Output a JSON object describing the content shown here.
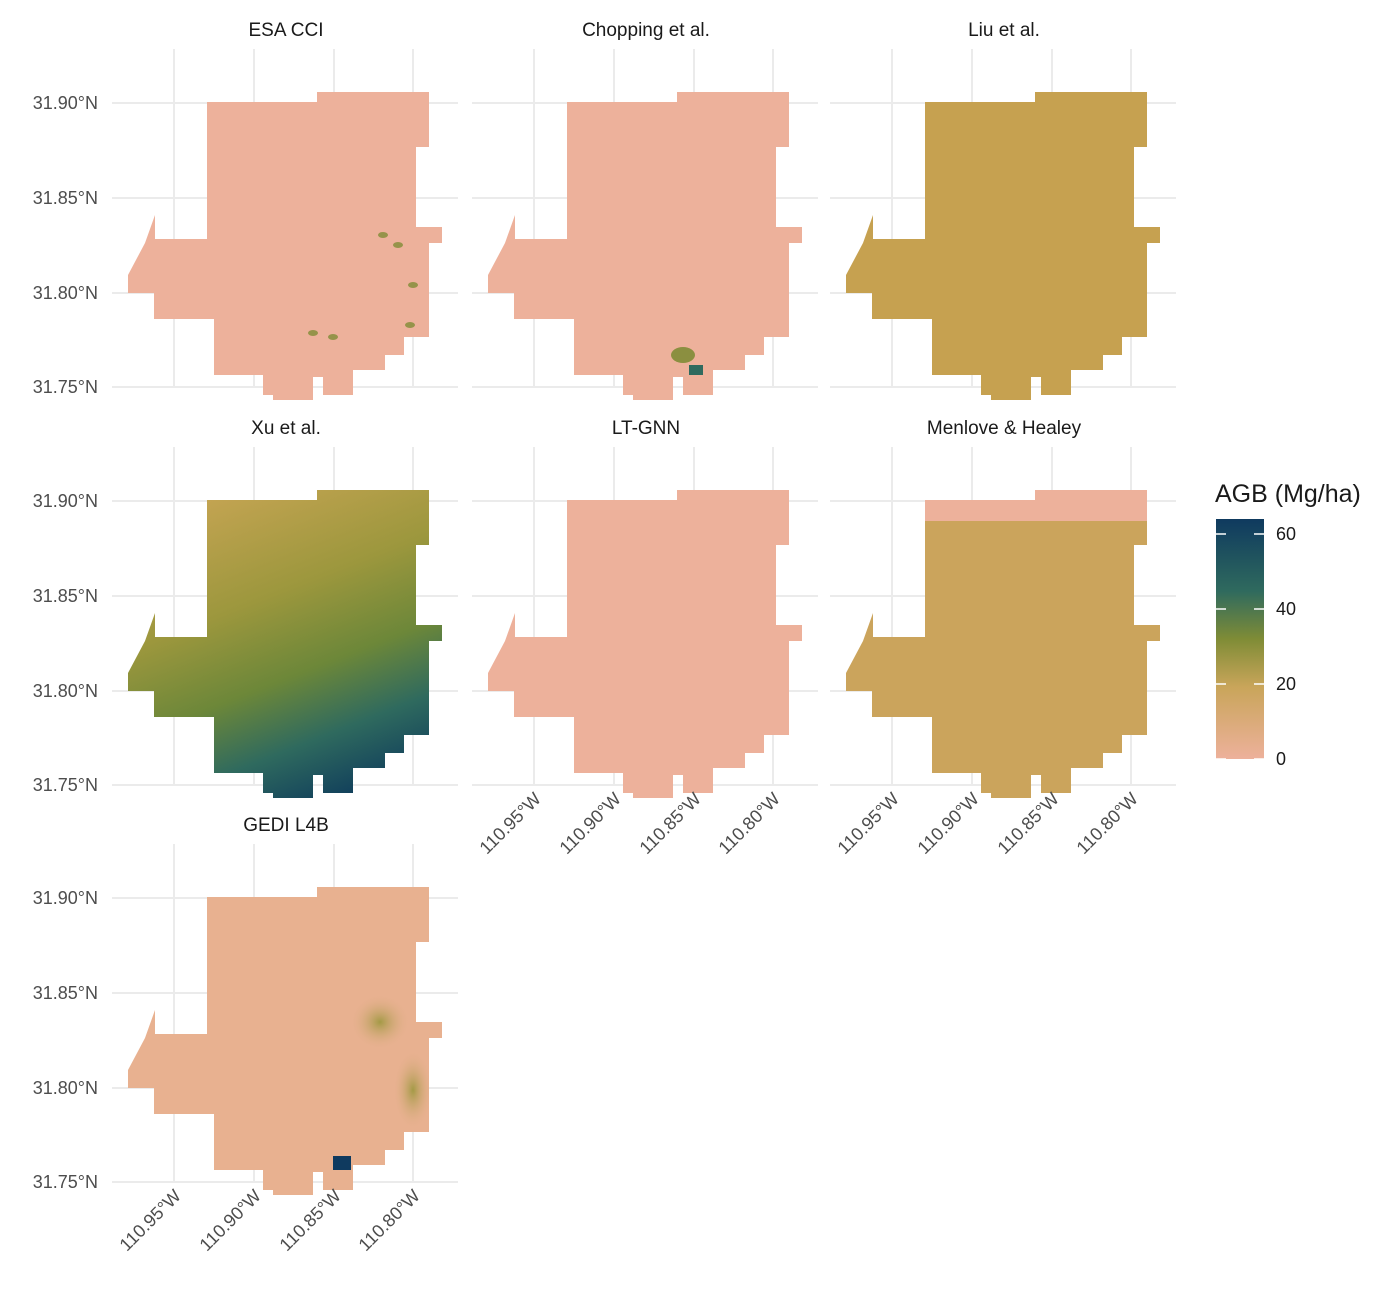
{
  "legend": {
    "title": "AGB (Mg/ha)",
    "ticks": [
      0,
      20,
      40,
      60
    ],
    "range": [
      0,
      64
    ],
    "colors": [
      "#edb19b",
      "#c9a55a",
      "#7f8c36",
      "#2f6a5e",
      "#0f3a5f"
    ]
  },
  "x_ticks": [
    "110.95°W",
    "110.90°W",
    "110.85°W",
    "110.80°W"
  ],
  "y_ticks": [
    "31.90°N",
    "31.85°N",
    "31.80°N",
    "31.75°N"
  ],
  "panels": [
    {
      "title": "ESA CCI",
      "fill": "#edb19b"
    },
    {
      "title": "Chopping et al.",
      "fill": "#edb19b"
    },
    {
      "title": "Liu et al.",
      "fill": "#c6a150"
    },
    {
      "title": "Xu et al.",
      "fill": "#b79f4f"
    },
    {
      "title": "LT-GNN",
      "fill": "#edb19b"
    },
    {
      "title": "Menlove & Healey",
      "fill": "#cba45c",
      "top_fill": "#edb19b"
    },
    {
      "title": "GEDI L4B",
      "fill": "#e8b190"
    }
  ]
}
